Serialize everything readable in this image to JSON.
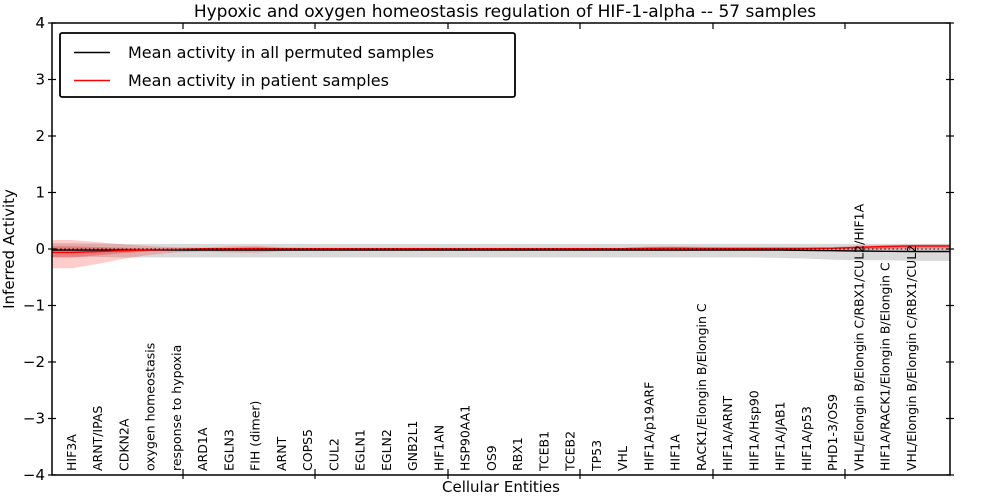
{
  "chart_data": {
    "type": "line",
    "title": "Hypoxic and oxygen homeostasis regulation of HIF-1-alpha -- 57 samples",
    "xlabel": "Cellular Entities",
    "ylabel": "Inferred Activity",
    "ylim": [
      -4,
      4
    ],
    "yticks": [
      4,
      3,
      2,
      1,
      0,
      -1,
      -2,
      -3,
      -4
    ],
    "ytick_labels": [
      "4",
      "3",
      "2",
      "1",
      "0",
      "−1",
      "−2",
      "−3",
      "−4"
    ],
    "grid": false,
    "legend_position": "upper left",
    "categories": [
      "HIF3A",
      "ARNT/IPAS",
      "CDKN2A",
      "oxygen homeostasis",
      "response to hypoxia",
      "ARD1A",
      "EGLN3",
      "FIH (dimer)",
      "ARNT",
      "COPS5",
      "CUL2",
      "EGLN1",
      "EGLN2",
      "GNB2L1",
      "HIF1AN",
      "HSP90AA1",
      "OS9",
      "RBX1",
      "TCEB1",
      "TCEB2",
      "TP53",
      "VHL",
      "HIF1A/p19ARF",
      "HIF1A",
      "RACK1/Elongin B/Elongin C",
      "HIF1A/ARNT",
      "HIF1A/Hsp90",
      "HIF1A/JAB1",
      "HIF1A/p53",
      "PHD1-3/OS9",
      "VHL/Elongin B/Elongin C/RBX1/CUL2/HIF1A",
      "HIF1A/RACK1/Elongin B/Elongin C",
      "VHL/Elongin B/Elongin C/RBX1/CUL2"
    ],
    "series": [
      {
        "name": "Mean activity in all permuted samples",
        "color": "#000000",
        "style": "solid",
        "values": [
          -0.02,
          -0.02,
          -0.02,
          -0.02,
          -0.02,
          -0.02,
          -0.02,
          -0.02,
          -0.02,
          -0.02,
          -0.02,
          -0.02,
          -0.02,
          -0.02,
          -0.02,
          -0.02,
          -0.02,
          -0.02,
          -0.02,
          -0.02,
          -0.02,
          -0.02,
          -0.02,
          -0.02,
          -0.02,
          -0.02,
          -0.02,
          -0.02,
          -0.025,
          -0.03,
          -0.035,
          -0.04,
          -0.045
        ]
      },
      {
        "name": "Mean activity in patient samples",
        "color": "#ff0000",
        "style": "solid",
        "values": [
          -0.06,
          -0.045,
          -0.03,
          -0.015,
          -0.005,
          0.005,
          0.005,
          0.008,
          0.005,
          0.005,
          0.005,
          0.005,
          0.005,
          0.005,
          0.005,
          0.005,
          0.005,
          0.005,
          0.005,
          0.005,
          0.005,
          0.005,
          0.012,
          0.015,
          0.01,
          0.008,
          0.008,
          0.008,
          0.008,
          0.015,
          0.03,
          0.045,
          0.055
        ]
      },
      {
        "name": "zero-reference",
        "color": "#000000",
        "style": "dotted",
        "values": [
          0,
          0,
          0,
          0,
          0,
          0,
          0,
          0,
          0,
          0,
          0,
          0,
          0,
          0,
          0,
          0,
          0,
          0,
          0,
          0,
          0,
          0,
          0,
          0,
          0,
          0,
          0,
          0,
          0,
          0,
          0,
          0,
          0
        ]
      }
    ],
    "bands": [
      {
        "name": "permuted-samples-spread",
        "color": "#808080",
        "opacity": 0.3,
        "upper": [
          0.1,
          0.095,
          0.09,
          0.09,
          0.09,
          0.09,
          0.09,
          0.09,
          0.09,
          0.09,
          0.09,
          0.09,
          0.09,
          0.09,
          0.09,
          0.09,
          0.09,
          0.09,
          0.09,
          0.09,
          0.09,
          0.09,
          0.09,
          0.09,
          0.09,
          0.09,
          0.09,
          0.09,
          0.09,
          0.09,
          0.09,
          0.09,
          0.09
        ],
        "lower": [
          -0.14,
          -0.14,
          -0.15,
          -0.15,
          -0.15,
          -0.15,
          -0.15,
          -0.15,
          -0.15,
          -0.15,
          -0.15,
          -0.15,
          -0.15,
          -0.15,
          -0.15,
          -0.15,
          -0.15,
          -0.15,
          -0.15,
          -0.15,
          -0.15,
          -0.15,
          -0.15,
          -0.15,
          -0.15,
          -0.15,
          -0.15,
          -0.16,
          -0.17,
          -0.19,
          -0.2,
          -0.2,
          -0.21
        ]
      },
      {
        "name": "patient-samples-spread-outer",
        "color": "#ff0000",
        "opacity": 0.2,
        "upper": [
          0.16,
          0.12,
          0.08,
          0.05,
          0.03,
          0.025,
          0.05,
          0.055,
          0.03,
          0.022,
          0.022,
          0.022,
          0.022,
          0.022,
          0.022,
          0.022,
          0.022,
          0.022,
          0.022,
          0.022,
          0.022,
          0.022,
          0.045,
          0.05,
          0.04,
          0.03,
          0.03,
          0.03,
          0.03,
          0.035,
          0.06,
          0.07,
          0.08
        ],
        "lower": [
          -0.34,
          -0.26,
          -0.17,
          -0.1,
          -0.06,
          -0.045,
          -0.06,
          -0.065,
          -0.04,
          -0.028,
          -0.028,
          -0.028,
          -0.028,
          -0.028,
          -0.028,
          -0.028,
          -0.028,
          -0.028,
          -0.028,
          -0.028,
          -0.028,
          -0.028,
          -0.035,
          -0.04,
          -0.032,
          -0.028,
          -0.028,
          -0.028,
          -0.028,
          -0.03,
          -0.02,
          -0.015,
          -0.01
        ]
      },
      {
        "name": "patient-samples-spread-inner",
        "color": "#ff0000",
        "opacity": 0.28,
        "upper": [
          0.05,
          0.035,
          0.022,
          0.012,
          0.008,
          0.008,
          0.02,
          0.022,
          0.012,
          0.01,
          0.01,
          0.01,
          0.01,
          0.01,
          0.01,
          0.01,
          0.01,
          0.01,
          0.01,
          0.01,
          0.01,
          0.01,
          0.02,
          0.022,
          0.015,
          0.012,
          0.012,
          0.012,
          0.012,
          0.015,
          0.05,
          0.06,
          0.07
        ],
        "lower": [
          -0.15,
          -0.11,
          -0.07,
          -0.04,
          -0.02,
          -0.015,
          -0.025,
          -0.028,
          -0.018,
          -0.012,
          -0.012,
          -0.012,
          -0.012,
          -0.012,
          -0.012,
          -0.012,
          -0.012,
          -0.012,
          -0.012,
          -0.012,
          -0.012,
          -0.012,
          -0.018,
          -0.02,
          -0.015,
          -0.012,
          -0.012,
          -0.012,
          -0.012,
          -0.012,
          -0.005,
          0.005,
          0.02
        ]
      }
    ]
  },
  "legend": {
    "entries": [
      {
        "label": "Mean activity in all permuted samples",
        "color": "#000000"
      },
      {
        "label": "Mean activity in patient samples",
        "color": "#ff0000"
      }
    ]
  }
}
